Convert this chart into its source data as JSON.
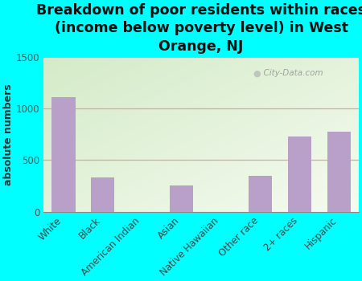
{
  "categories": [
    "White",
    "Black",
    "American Indian",
    "Asian",
    "Native Hawaiian",
    "Other race",
    "2+ races",
    "Hispanic"
  ],
  "values": [
    1110,
    330,
    0,
    250,
    0,
    350,
    730,
    775
  ],
  "bar_color": "#b8a0c8",
  "title": "Breakdown of poor residents within races\n(income below poverty level) in West\nOrange, NJ",
  "ylabel": "absolute numbers",
  "ylim": [
    0,
    1500
  ],
  "yticks": [
    0,
    500,
    1000,
    1500
  ],
  "bg_color": "#00ffff",
  "plot_bg_top_left": "#d4ebc8",
  "plot_bg_bottom_right": "#f5fbf0",
  "grid_color": "#e8a0a0",
  "watermark": "City-Data.com",
  "title_fontsize": 12.5,
  "ylabel_fontsize": 9,
  "tick_fontsize": 8.5,
  "title_color": "#111111"
}
